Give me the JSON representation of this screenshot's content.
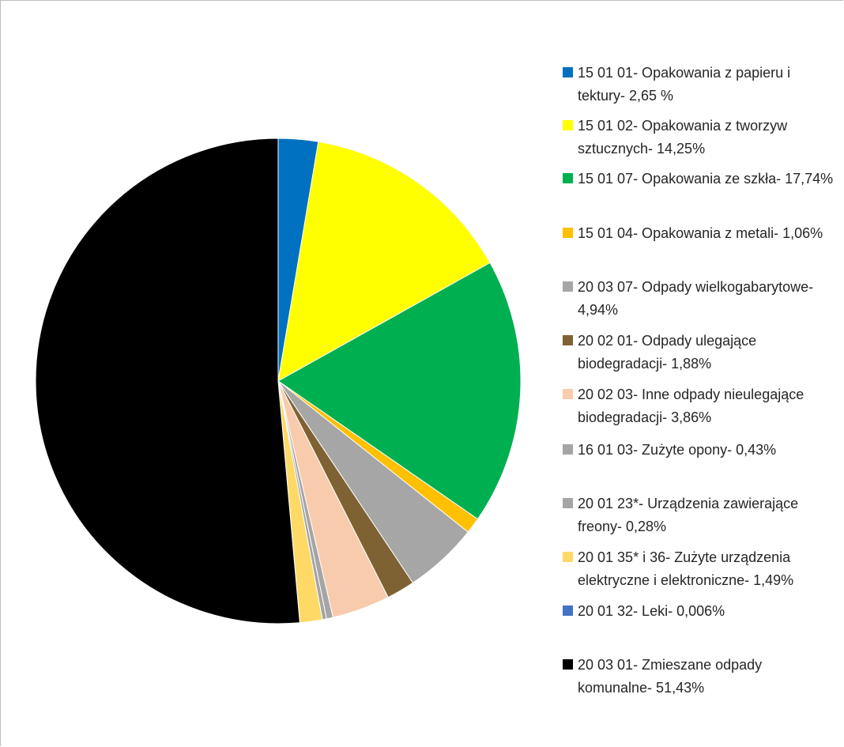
{
  "chart_data": {
    "type": "pie",
    "series": [
      {
        "label": "15 01 01- Opakowania z papieru i tektury- 2,65 %",
        "value": 2.65,
        "color": "#0070c0"
      },
      {
        "label": "15 01 02- Opakowania z tworzyw sztucznych- 14,25%",
        "value": 14.25,
        "color": "#ffff00"
      },
      {
        "label": "15 01 07- Opakowania ze szkła- 17,74%",
        "value": 17.74,
        "color": "#00b050"
      },
      {
        "label": "15 01 04- Opakowania z metali- 1,06%",
        "value": 1.06,
        "color": "#ffc000"
      },
      {
        "label": "20 03 07- Odpady wielkogabarytowe- 4,94%",
        "value": 4.94,
        "color": "#a6a6a6"
      },
      {
        "label": "20 02 01- Odpady ulegające biodegradacji- 1,88%",
        "value": 1.88,
        "color": "#7f6233"
      },
      {
        "label": "20 02 03- Inne odpady nieulegające biodegradacji- 3,86%",
        "value": 3.86,
        "color": "#f8cbad"
      },
      {
        "label": "16 01 03- Zużyte opony- 0,43%",
        "value": 0.43,
        "color": "#a5a5a5"
      },
      {
        "label": "20 01 23*- Urządzenia zawierające freony- 0,28%",
        "value": 0.28,
        "color": "#a5a5a5"
      },
      {
        "label": "20 01 35* i 36- Zużyte urządzenia elektryczne i elektroniczne- 1,49%",
        "value": 1.49,
        "color": "#ffd966"
      },
      {
        "label": "20 01 32- Leki- 0,006%",
        "value": 0.006,
        "color": "#4472c4"
      },
      {
        "label": "20 03 01- Zmieszane odpady komunalne- 51,43%",
        "value": 51.43,
        "color": "#000000"
      }
    ],
    "legend_position": "right"
  }
}
